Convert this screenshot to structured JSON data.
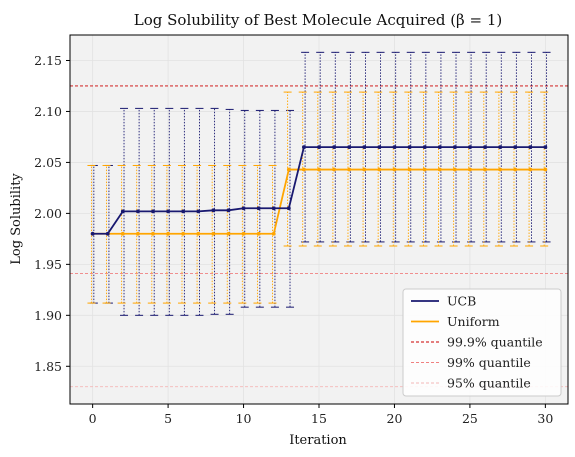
{
  "chart_data": {
    "type": "line",
    "title": "Log Solubility of Best Molecule Acquired (β = 1)",
    "xlabel": "Iteration",
    "ylabel": "Log Solubility",
    "xlim": [
      -1.5,
      31.5
    ],
    "ylim": [
      1.813,
      2.175
    ],
    "xticks": [
      0,
      5,
      10,
      15,
      20,
      25,
      30
    ],
    "yticks": [
      1.85,
      1.9,
      1.95,
      2.0,
      2.05,
      2.1,
      2.15
    ],
    "ytick_labels": [
      "1.85",
      "1.90",
      "1.95",
      "2.00",
      "2.05",
      "2.10",
      "2.15"
    ],
    "grid": true,
    "legend_position": "lower-right",
    "x": [
      0,
      1,
      2,
      3,
      4,
      5,
      6,
      7,
      8,
      9,
      10,
      11,
      12,
      13,
      14,
      15,
      16,
      17,
      18,
      19,
      20,
      21,
      22,
      23,
      24,
      25,
      26,
      27,
      28,
      29,
      30
    ],
    "series": [
      {
        "name": "UCB",
        "color": "#191970",
        "values": [
          1.98,
          1.98,
          2.002,
          2.002,
          2.002,
          2.002,
          2.002,
          2.002,
          2.003,
          2.003,
          2.005,
          2.005,
          2.005,
          2.005,
          2.065,
          2.065,
          2.065,
          2.065,
          2.065,
          2.065,
          2.065,
          2.065,
          2.065,
          2.065,
          2.065,
          2.065,
          2.065,
          2.065,
          2.065,
          2.065,
          2.065
        ],
        "lower": [
          1.912,
          1.912,
          1.9,
          1.9,
          1.9,
          1.9,
          1.9,
          1.9,
          1.901,
          1.901,
          1.908,
          1.908,
          1.908,
          1.908,
          1.972,
          1.972,
          1.972,
          1.972,
          1.972,
          1.972,
          1.972,
          1.972,
          1.972,
          1.972,
          1.972,
          1.972,
          1.972,
          1.972,
          1.972,
          1.972,
          1.972
        ],
        "upper": [
          2.047,
          2.047,
          2.103,
          2.103,
          2.103,
          2.103,
          2.103,
          2.103,
          2.103,
          2.102,
          2.101,
          2.101,
          2.101,
          2.101,
          2.158,
          2.158,
          2.158,
          2.158,
          2.158,
          2.158,
          2.158,
          2.158,
          2.158,
          2.158,
          2.158,
          2.158,
          2.158,
          2.158,
          2.158,
          2.158,
          2.158
        ]
      },
      {
        "name": "Uniform",
        "color": "#FFA500",
        "values": [
          1.98,
          1.98,
          1.98,
          1.98,
          1.98,
          1.98,
          1.98,
          1.98,
          1.98,
          1.98,
          1.98,
          1.98,
          1.98,
          2.043,
          2.043,
          2.043,
          2.043,
          2.043,
          2.043,
          2.043,
          2.043,
          2.043,
          2.043,
          2.043,
          2.043,
          2.043,
          2.043,
          2.043,
          2.043,
          2.043,
          2.043
        ],
        "lower": [
          1.912,
          1.912,
          1.912,
          1.912,
          1.912,
          1.912,
          1.912,
          1.912,
          1.912,
          1.912,
          1.912,
          1.912,
          1.912,
          1.968,
          1.968,
          1.968,
          1.968,
          1.968,
          1.968,
          1.968,
          1.968,
          1.968,
          1.968,
          1.968,
          1.968,
          1.968,
          1.968,
          1.968,
          1.968,
          1.968,
          1.968
        ],
        "upper": [
          2.047,
          2.047,
          2.047,
          2.047,
          2.047,
          2.047,
          2.047,
          2.047,
          2.047,
          2.047,
          2.047,
          2.047,
          2.047,
          2.119,
          2.119,
          2.119,
          2.119,
          2.119,
          2.119,
          2.119,
          2.119,
          2.119,
          2.119,
          2.119,
          2.119,
          2.119,
          2.119,
          2.119,
          2.119,
          2.119,
          2.119
        ]
      }
    ],
    "reference_lines": [
      {
        "name": "99.9% quantile",
        "value": 2.125,
        "color": "#cc0000"
      },
      {
        "name": "99% quantile",
        "value": 1.941,
        "color": "#f08080"
      },
      {
        "name": "95% quantile",
        "value": 1.83,
        "color": "#f4b8b8"
      }
    ]
  }
}
